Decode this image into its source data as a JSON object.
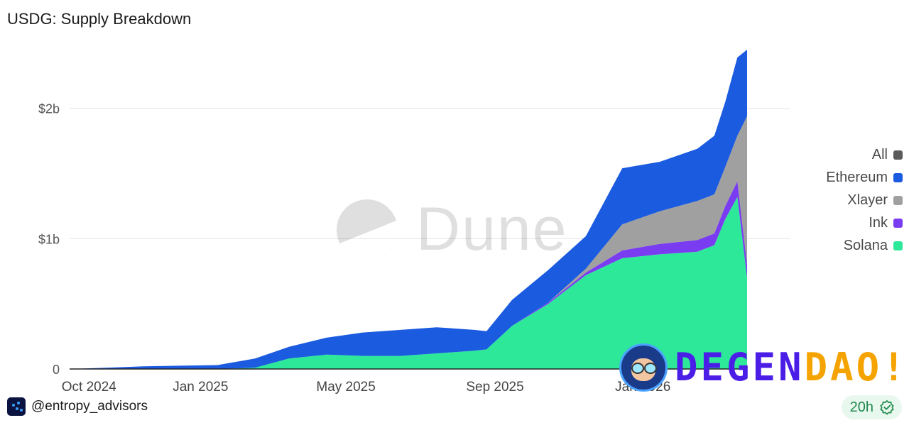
{
  "header": {
    "title": "USDG: Supply Breakdown"
  },
  "watermark": {
    "text": "Dune"
  },
  "overlay": {
    "text_part1": "DEGEN",
    "text_part2": "DAO!"
  },
  "footer": {
    "author": "@entropy_advisors",
    "refresh": "20h"
  },
  "chart_data": {
    "type": "area",
    "stacked": true,
    "x_axis": {
      "ticks": [
        "Oct 2024",
        "Jan 2025",
        "May 2025",
        "Sep 2025",
        "Jan 2026"
      ]
    },
    "y_axis": {
      "ticks": [
        "0",
        "$1b",
        "$2b"
      ],
      "ylim": [
        0,
        2450000000
      ]
    },
    "grid": true,
    "legend_position": "right",
    "legend": [
      {
        "name": "All",
        "color": "#5b5b5b"
      },
      {
        "name": "Ethereum",
        "color": "#1b5be0"
      },
      {
        "name": "Xlayer",
        "color": "#a0a0a0"
      },
      {
        "name": "Ink",
        "color": "#7a3cf0"
      },
      {
        "name": "Solana",
        "color": "#2ee89a"
      }
    ],
    "x": [
      "2024-09-15",
      "2024-10-15",
      "2024-11-15",
      "2024-12-15",
      "2025-01-15",
      "2025-02-15",
      "2025-03-15",
      "2025-04-15",
      "2025-05-15",
      "2025-06-15",
      "2025-07-15",
      "2025-08-15",
      "2025-08-25",
      "2025-09-15",
      "2025-10-15",
      "2025-11-15",
      "2025-12-15",
      "2026-01-15",
      "2026-02-15",
      "2026-03-01",
      "2026-03-10",
      "2026-03-20",
      "2026-03-28"
    ],
    "series": [
      {
        "name": "Solana",
        "values": [
          0,
          0,
          0,
          0,
          0,
          10000000,
          80000000,
          110000000,
          100000000,
          100000000,
          120000000,
          140000000,
          150000000,
          330000000,
          500000000,
          720000000,
          850000000,
          880000000,
          900000000,
          950000000,
          1150000000,
          1320000000,
          700000000
        ]
      },
      {
        "name": "Ink",
        "values": [
          0,
          0,
          0,
          0,
          0,
          0,
          0,
          0,
          0,
          0,
          0,
          0,
          0,
          0,
          10000000,
          20000000,
          60000000,
          80000000,
          90000000,
          90000000,
          100000000,
          120000000,
          100000000
        ]
      },
      {
        "name": "Xlayer",
        "values": [
          0,
          0,
          0,
          0,
          0,
          0,
          0,
          0,
          0,
          0,
          0,
          0,
          0,
          0,
          0,
          30000000,
          200000000,
          250000000,
          300000000,
          300000000,
          300000000,
          350000000,
          1140000000
        ]
      },
      {
        "name": "Ethereum",
        "values": [
          0,
          10000000,
          20000000,
          25000000,
          30000000,
          70000000,
          90000000,
          130000000,
          180000000,
          200000000,
          200000000,
          160000000,
          140000000,
          200000000,
          250000000,
          250000000,
          430000000,
          380000000,
          400000000,
          450000000,
          500000000,
          600000000,
          510000000
        ]
      }
    ]
  }
}
